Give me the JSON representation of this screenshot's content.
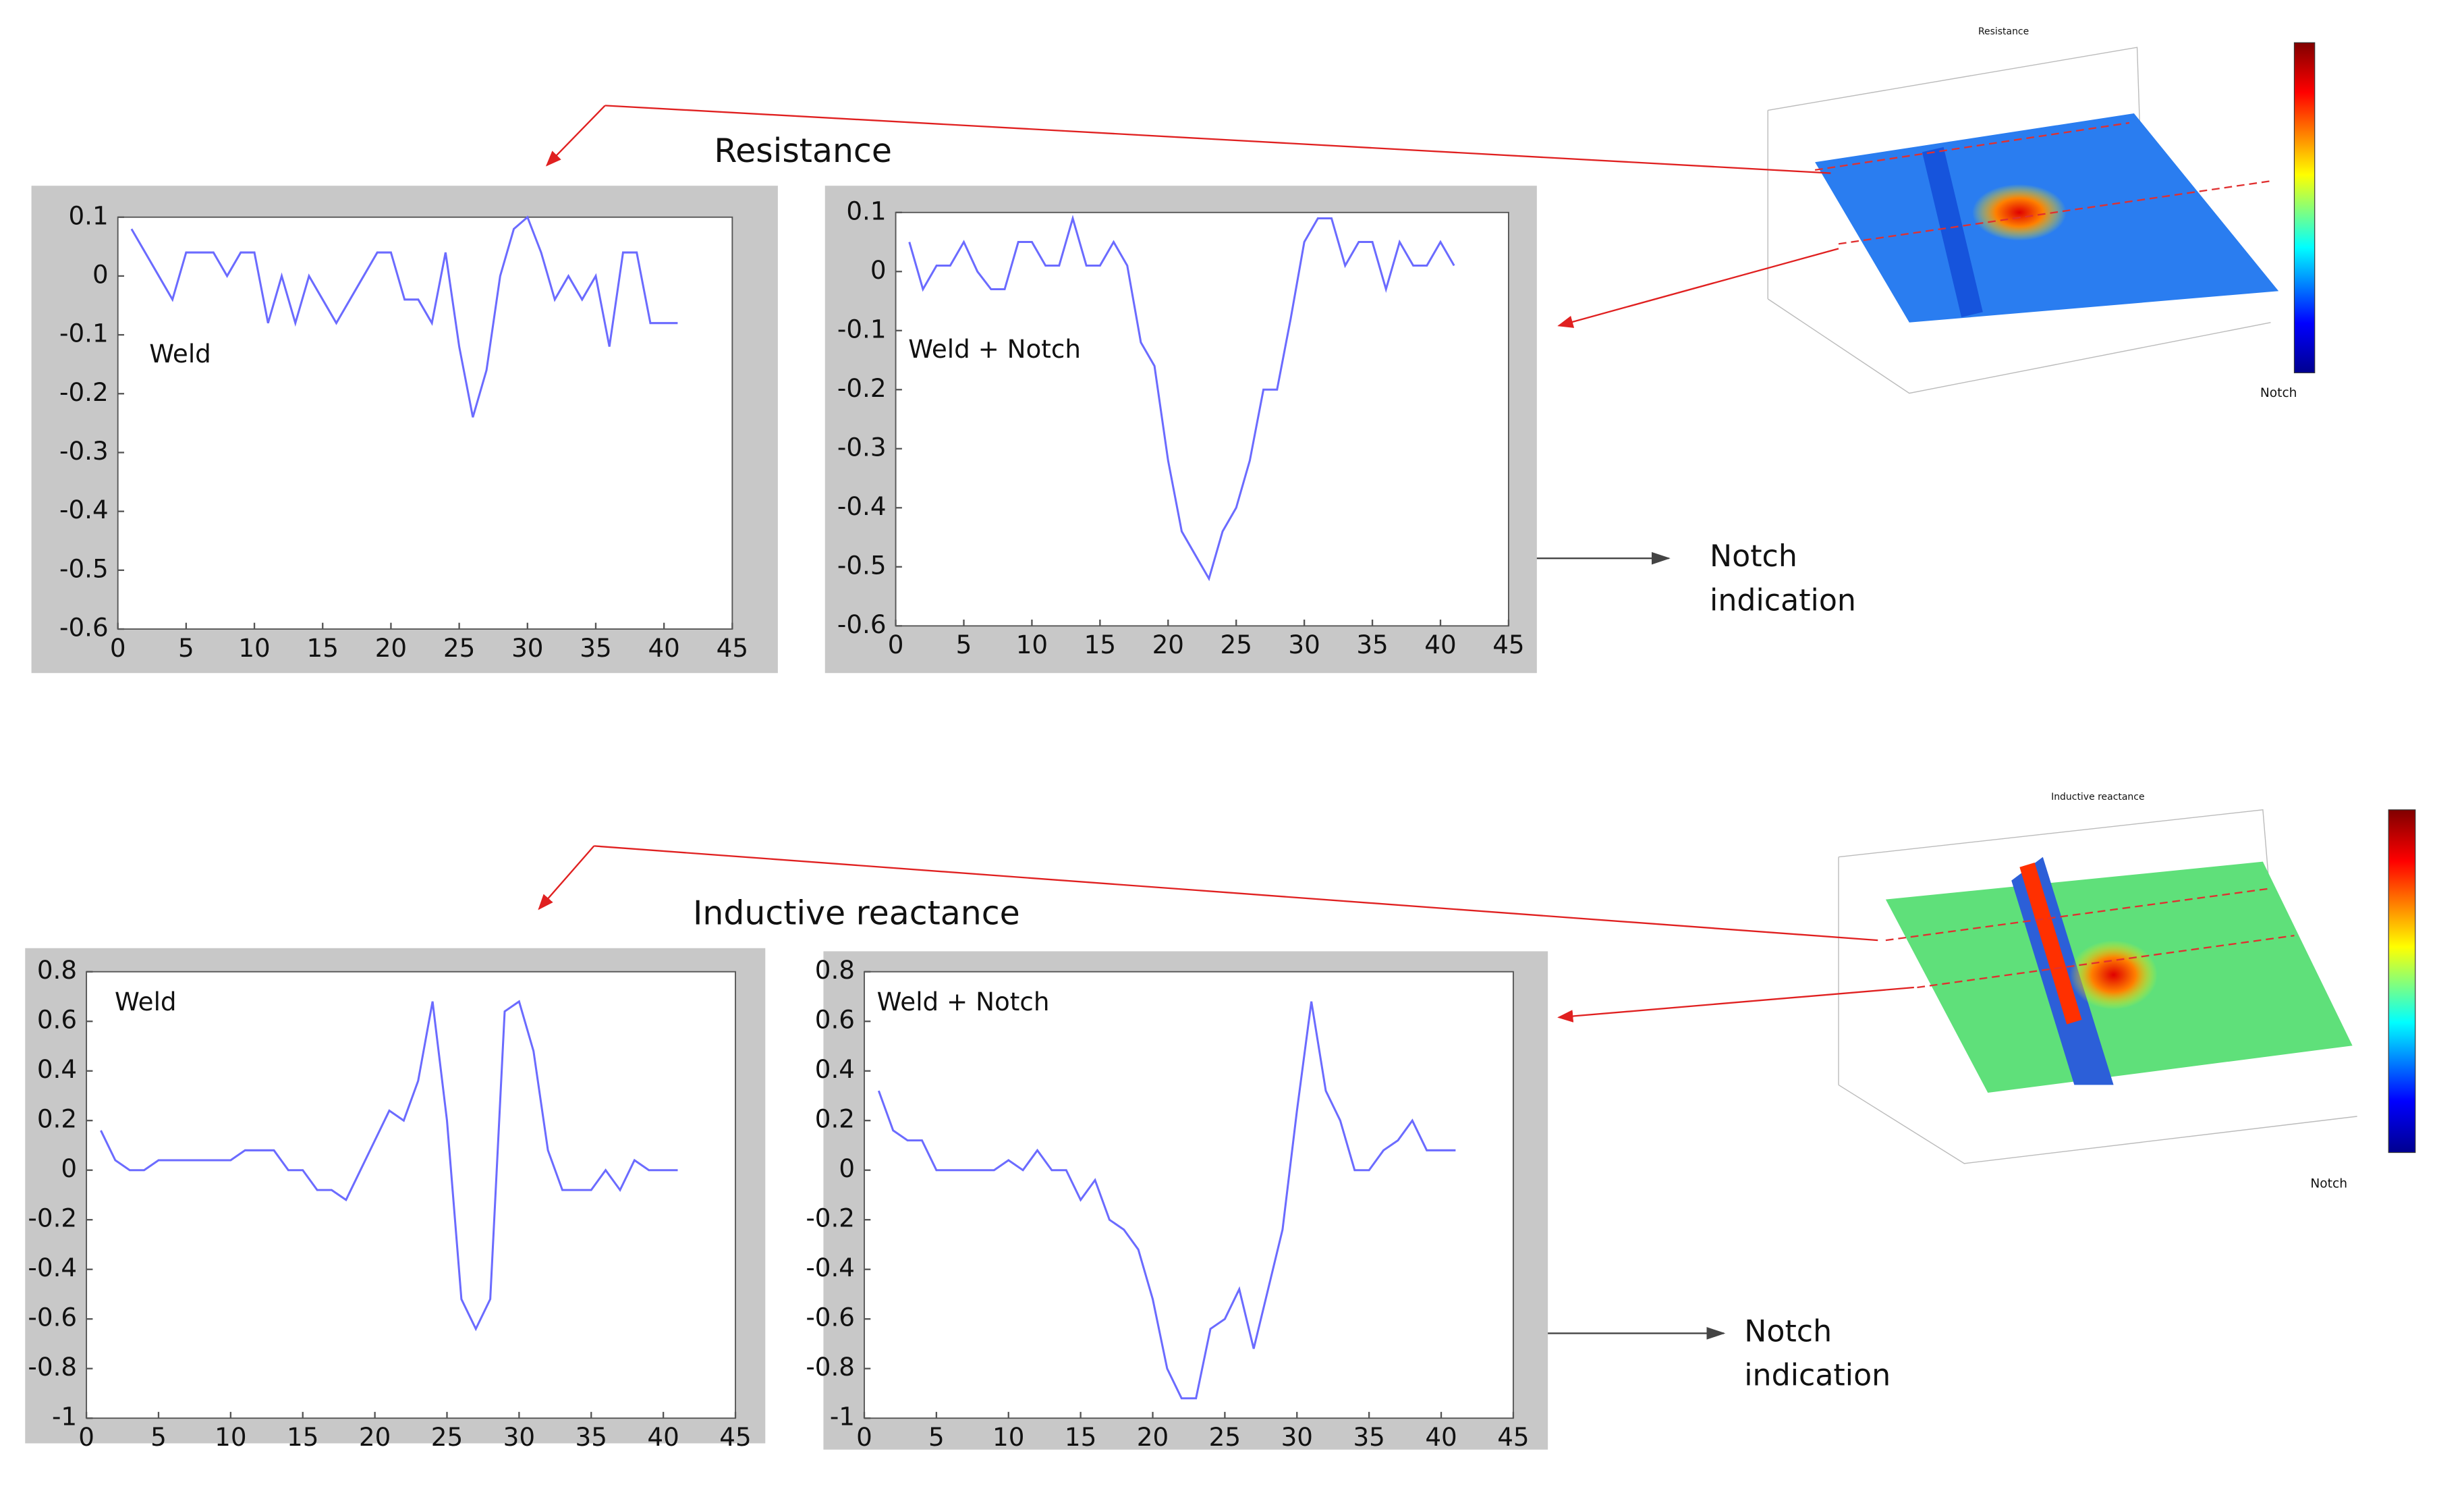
{
  "chart_data": [
    {
      "type": "line",
      "label": "Weld",
      "x": [
        1,
        2,
        3,
        4,
        5,
        6,
        7,
        8,
        9,
        10,
        11,
        12,
        13,
        14,
        15,
        16,
        17,
        18,
        19,
        20,
        21,
        22,
        23,
        24,
        25,
        26,
        27,
        28,
        29,
        30,
        31,
        32,
        33,
        34,
        35,
        36,
        37,
        38,
        39,
        40,
        41
      ],
      "series": [
        {
          "color": "#6b6bff",
          "values": [
            0.08,
            0.04,
            0,
            -0.04,
            0.04,
            0.04,
            0.04,
            0,
            0.04,
            0.04,
            -0.08,
            0,
            -0.08,
            0,
            -0.04,
            -0.08,
            -0.04,
            0,
            0.04,
            0.04,
            -0.04,
            -0.04,
            -0.08,
            0.04,
            -0.12,
            -0.24,
            -0.16,
            0,
            0.08,
            0.1,
            0.04,
            -0.04,
            0,
            -0.04,
            0,
            -0.12,
            0.04,
            0.04,
            -0.08,
            -0.08,
            -0.08
          ]
        }
      ],
      "xlim": [
        0,
        45
      ],
      "xticks": [
        0,
        5,
        10,
        15,
        20,
        25,
        30,
        35,
        40,
        45
      ],
      "ylim": [
        -0.6,
        0.1
      ],
      "yticks": [
        -0.6,
        -0.5,
        -0.4,
        -0.3,
        -0.2,
        -0.1,
        0,
        0.1
      ]
    },
    {
      "type": "line",
      "label": "Weld + Notch",
      "x": [
        1,
        2,
        3,
        4,
        5,
        6,
        7,
        8,
        9,
        10,
        11,
        12,
        13,
        14,
        15,
        16,
        17,
        18,
        19,
        20,
        21,
        22,
        23,
        24,
        25,
        26,
        27,
        28,
        29,
        30,
        31,
        32,
        33,
        34,
        35,
        36,
        37,
        38,
        39,
        40,
        41
      ],
      "series": [
        {
          "color": "#6b6bff",
          "values": [
            0.05,
            -0.03,
            0.01,
            0.01,
            0.05,
            0,
            -0.03,
            -0.03,
            0.05,
            0.05,
            0.01,
            0.01,
            0.09,
            0.01,
            0.01,
            0.05,
            0.01,
            -0.12,
            -0.16,
            -0.32,
            -0.44,
            -0.48,
            -0.52,
            -0.44,
            -0.4,
            -0.32,
            -0.2,
            -0.2,
            -0.08,
            0.05,
            0.09,
            0.09,
            0.01,
            0.05,
            0.05,
            -0.03,
            0.05,
            0.01,
            0.01,
            0.05,
            0.01
          ]
        }
      ],
      "xlim": [
        0,
        45
      ],
      "xticks": [
        0,
        5,
        10,
        15,
        20,
        25,
        30,
        35,
        40,
        45
      ],
      "ylim": [
        -0.6,
        0.1
      ],
      "yticks": [
        -0.6,
        -0.5,
        -0.4,
        -0.3,
        -0.2,
        -0.1,
        0,
        0.1
      ]
    },
    {
      "type": "line",
      "label": "Weld",
      "x": [
        1,
        2,
        3,
        4,
        5,
        6,
        7,
        8,
        9,
        10,
        11,
        12,
        13,
        14,
        15,
        16,
        17,
        18,
        19,
        20,
        21,
        22,
        23,
        24,
        25,
        26,
        27,
        28,
        29,
        30,
        31,
        32,
        33,
        34,
        35,
        36,
        37,
        38,
        39,
        40,
        41
      ],
      "series": [
        {
          "color": "#6b6bff",
          "values": [
            0.16,
            0.04,
            0,
            0,
            0.04,
            0.04,
            0.04,
            0.04,
            0.04,
            0.04,
            0.08,
            0.08,
            0.08,
            0,
            0,
            -0.08,
            -0.08,
            -0.12,
            0,
            0.12,
            0.24,
            0.2,
            0.36,
            0.68,
            0.2,
            -0.52,
            -0.64,
            -0.52,
            0.64,
            0.68,
            0.48,
            0.08,
            -0.08,
            -0.08,
            -0.08,
            0,
            -0.08,
            0.04,
            0,
            0,
            0
          ]
        }
      ],
      "xlim": [
        0,
        45
      ],
      "xticks": [
        0,
        5,
        10,
        15,
        20,
        25,
        30,
        35,
        40,
        45
      ],
      "ylim": [
        -1,
        0.8
      ],
      "yticks": [
        -1,
        -0.8,
        -0.6,
        -0.4,
        -0.2,
        0,
        0.2,
        0.4,
        0.6,
        0.8
      ]
    },
    {
      "type": "line",
      "label": "Weld + Notch",
      "x": [
        1,
        2,
        3,
        4,
        5,
        6,
        7,
        8,
        9,
        10,
        11,
        12,
        13,
        14,
        15,
        16,
        17,
        18,
        19,
        20,
        21,
        22,
        23,
        24,
        25,
        26,
        27,
        28,
        29,
        30,
        31,
        32,
        33,
        34,
        35,
        36,
        37,
        38,
        39,
        40,
        41
      ],
      "series": [
        {
          "color": "#6b6bff",
          "values": [
            0.32,
            0.16,
            0.12,
            0.12,
            0,
            0,
            0,
            0,
            0,
            0.04,
            0,
            0.08,
            0,
            0,
            -0.12,
            -0.04,
            -0.2,
            -0.24,
            -0.32,
            -0.52,
            -0.8,
            -0.92,
            -0.92,
            -0.64,
            -0.6,
            -0.48,
            -0.72,
            -0.48,
            -0.24,
            0.24,
            0.68,
            0.32,
            0.2,
            0,
            0,
            0.08,
            0.12,
            0.2,
            0.08,
            0.08,
            0.08
          ]
        }
      ],
      "xlim": [
        0,
        45
      ],
      "xticks": [
        0,
        5,
        10,
        15,
        20,
        25,
        30,
        35,
        40,
        45
      ],
      "ylim": [
        -1,
        0.8
      ],
      "yticks": [
        -1,
        -0.8,
        -0.6,
        -0.4,
        -0.2,
        0,
        0.2,
        0.4,
        0.6,
        0.8
      ]
    }
  ],
  "sections": [
    {
      "heading": "Resistance",
      "surface_title": "Resistance",
      "surface_axis": "Notch",
      "indication": [
        "Notch",
        "indication"
      ]
    },
    {
      "heading": "Inductive reactance",
      "surface_title": "Inductive reactance",
      "surface_axis": "Notch",
      "indication": [
        "Notch",
        "indication"
      ]
    }
  ]
}
